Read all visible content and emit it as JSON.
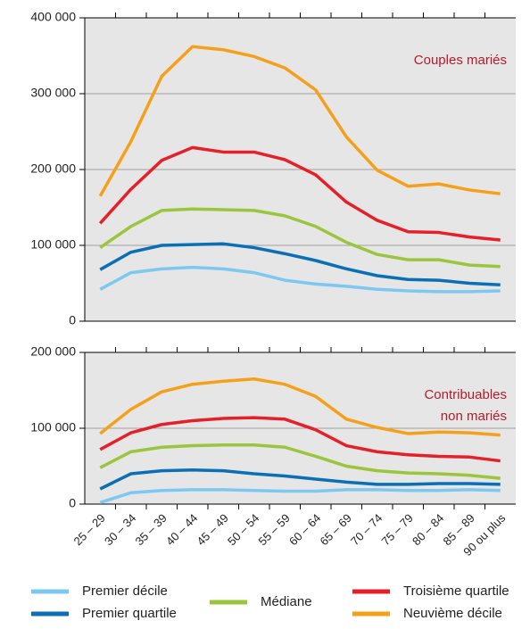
{
  "chart_data": {
    "type": "line",
    "categories": [
      "25 – 29",
      "30 – 34",
      "35 – 39",
      "40 – 44",
      "45 – 49",
      "50 – 54",
      "55 – 59",
      "60 – 64",
      "65 – 69",
      "70 – 74",
      "75 – 79",
      "80 – 84",
      "85 – 89",
      "90 ou plus"
    ],
    "panels": [
      {
        "annotation": [
          "Couples mariés"
        ],
        "ylim": [
          0,
          400000
        ],
        "yticks": [
          0,
          {
            "value": 100000,
            "label": "100 000"
          },
          {
            "value": 200000,
            "label": "200 000"
          },
          {
            "value": 300000,
            "label": "300 000"
          },
          {
            "value": 400000,
            "label": "400 000"
          }
        ]
      },
      {
        "annotation": [
          "Contribuables",
          "non mariés"
        ],
        "ylim": [
          0,
          200000
        ],
        "yticks": [
          0,
          {
            "value": 100000,
            "label": "100 000"
          },
          {
            "value": 200000,
            "label": "200 000"
          }
        ]
      }
    ],
    "grid": true,
    "series": [
      {
        "name": "Premier décile",
        "color": "#7dc8f0",
        "values": [
          [
            42000,
            64000,
            69000,
            71000,
            69000,
            64000,
            54000,
            49000,
            46000,
            42000,
            40000,
            39000,
            39000,
            40000
          ],
          [
            2000,
            15000,
            18000,
            19000,
            19000,
            18000,
            17000,
            17000,
            19000,
            19000,
            18000,
            18000,
            19000,
            18000
          ]
        ]
      },
      {
        "name": "Premier quartile",
        "color": "#0a6fb5",
        "values": [
          [
            68000,
            91000,
            100000,
            101000,
            102000,
            97000,
            89000,
            80000,
            69000,
            60000,
            55000,
            54000,
            50000,
            48000
          ],
          [
            20000,
            40000,
            44000,
            45000,
            44000,
            40000,
            37000,
            33000,
            29000,
            26000,
            26000,
            27000,
            27000,
            26000
          ]
        ]
      },
      {
        "name": "Médiane",
        "color": "#9bc53d",
        "values": [
          [
            97000,
            125000,
            146000,
            148000,
            147000,
            146000,
            139000,
            125000,
            104000,
            88000,
            81000,
            81000,
            74000,
            72000
          ],
          [
            48000,
            69000,
            75000,
            77000,
            78000,
            78000,
            75000,
            63000,
            50000,
            44000,
            41000,
            40000,
            38000,
            34000
          ]
        ]
      },
      {
        "name": "Troisième quartile",
        "color": "#e4202a",
        "values": [
          [
            129000,
            174000,
            212000,
            229000,
            223000,
            223000,
            213000,
            193000,
            157000,
            133000,
            118000,
            117000,
            111000,
            107000
          ],
          [
            72000,
            94000,
            105000,
            110000,
            113000,
            114000,
            112000,
            98000,
            77000,
            69000,
            65000,
            63000,
            62000,
            57000
          ]
        ]
      },
      {
        "name": "Neuvième décile",
        "color": "#f5a01a",
        "values": [
          [
            165000,
            237000,
            323000,
            362000,
            358000,
            349000,
            334000,
            305000,
            243000,
            199000,
            178000,
            181000,
            173000,
            168000
          ],
          [
            93000,
            125000,
            148000,
            158000,
            162000,
            165000,
            158000,
            142000,
            112000,
            101000,
            93000,
            95000,
            94000,
            91000
          ]
        ]
      }
    ]
  }
}
